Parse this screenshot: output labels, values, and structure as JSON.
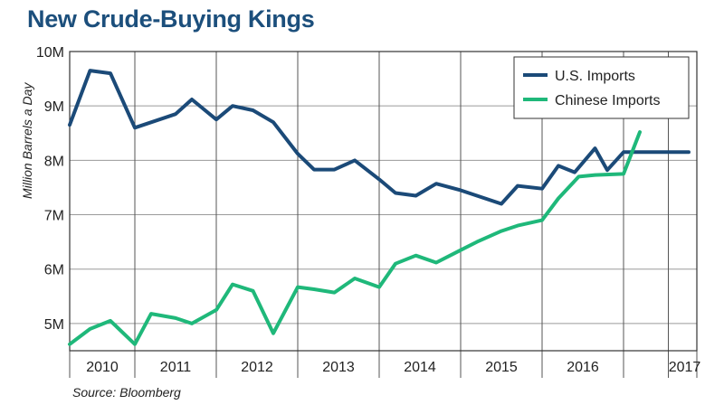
{
  "chart_data": {
    "type": "line",
    "title": "New Crude-Buying Kings",
    "xlabel": "",
    "ylabel": "Million Barrels a Day",
    "source": "Source: Bloomberg",
    "ylim": [
      4.5,
      10
    ],
    "yticks": [
      {
        "value": 5,
        "label": "5M"
      },
      {
        "value": 6,
        "label": "6M"
      },
      {
        "value": 7,
        "label": "7M"
      },
      {
        "value": 8,
        "label": "8M"
      },
      {
        "value": 9,
        "label": "9M"
      },
      {
        "value": 10,
        "label": "10M"
      }
    ],
    "xlim": [
      2009.6,
      2017.3
    ],
    "year_boundaries": [
      2010.4,
      2011.4,
      2012.4,
      2013.4,
      2014.4,
      2015.4,
      2016.4,
      2016.95
    ],
    "xticks": [
      {
        "value": 2010.0,
        "label": "2010"
      },
      {
        "value": 2010.9,
        "label": "2011"
      },
      {
        "value": 2011.9,
        "label": "2012"
      },
      {
        "value": 2012.9,
        "label": "2013"
      },
      {
        "value": 2013.9,
        "label": "2014"
      },
      {
        "value": 2014.9,
        "label": "2015"
      },
      {
        "value": 2015.9,
        "label": "2016"
      },
      {
        "value": 2017.15,
        "label": "2017"
      }
    ],
    "legend": {
      "position": "top-right"
    },
    "series": [
      {
        "name": "U.S. Imports",
        "color": "#1b4a78",
        "x": [
          2009.6,
          2009.85,
          2010.1,
          2010.4,
          2010.9,
          2011.1,
          2011.4,
          2011.6,
          2011.85,
          2012.1,
          2012.4,
          2012.6,
          2012.85,
          2013.1,
          2013.4,
          2013.6,
          2013.85,
          2014.1,
          2014.4,
          2014.6,
          2014.9,
          2015.1,
          2015.4,
          2015.6,
          2015.8,
          2016.05,
          2016.2,
          2016.4,
          2016.6,
          2017.2
        ],
        "values": [
          8.65,
          9.65,
          9.6,
          8.6,
          8.85,
          9.12,
          8.75,
          9.0,
          8.92,
          8.7,
          8.12,
          7.83,
          7.83,
          8.0,
          7.65,
          7.4,
          7.35,
          7.57,
          7.45,
          7.35,
          7.2,
          7.53,
          7.48,
          7.9,
          7.78,
          8.22,
          7.82,
          8.15,
          8.15,
          8.15
        ]
      },
      {
        "name": "Chinese Imports",
        "color": "#1fb87a",
        "x": [
          2009.6,
          2009.85,
          2010.1,
          2010.4,
          2010.6,
          2010.9,
          2011.1,
          2011.4,
          2011.6,
          2011.85,
          2012.1,
          2012.4,
          2012.6,
          2012.85,
          2013.1,
          2013.4,
          2013.6,
          2013.85,
          2014.1,
          2014.4,
          2014.6,
          2014.9,
          2015.1,
          2015.4,
          2015.6,
          2015.85,
          2016.05,
          2016.4,
          2016.6
        ],
        "values": [
          4.62,
          4.9,
          5.05,
          4.62,
          5.18,
          5.1,
          5.0,
          5.25,
          5.72,
          5.6,
          4.82,
          5.67,
          5.63,
          5.57,
          5.83,
          5.67,
          6.1,
          6.25,
          6.12,
          6.35,
          6.5,
          6.7,
          6.8,
          6.9,
          7.3,
          7.7,
          7.73,
          7.75,
          8.52
        ]
      }
    ]
  }
}
